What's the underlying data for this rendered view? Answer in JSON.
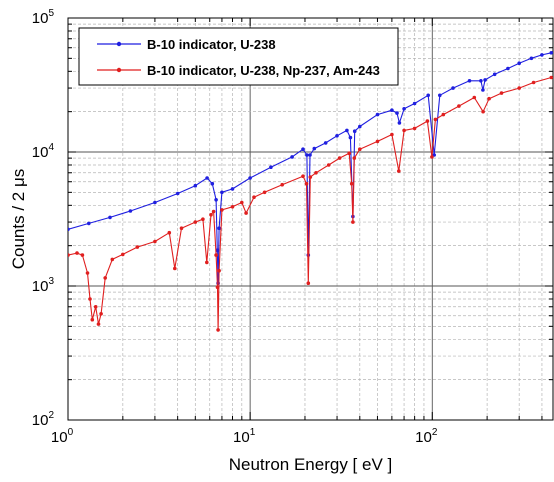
{
  "chart_data": {
    "type": "line",
    "xscale": "log",
    "yscale": "log",
    "xlim": [
      1,
      460
    ],
    "ylim": [
      100,
      100000
    ],
    "grid": true,
    "legend_position": "top-left",
    "xlabel": "Neutron Energy [ eV ]",
    "ylabel": "Counts / 2 μs",
    "x_ticks": [
      {
        "value": 1,
        "base": "10",
        "exp": "0"
      },
      {
        "value": 10,
        "base": "10",
        "exp": "1"
      },
      {
        "value": 100,
        "base": "10",
        "exp": "2"
      }
    ],
    "y_ticks": [
      {
        "value": 100,
        "base": "10",
        "exp": "2"
      },
      {
        "value": 1000,
        "base": "10",
        "exp": "3"
      },
      {
        "value": 10000,
        "base": "10",
        "exp": "4"
      },
      {
        "value": 100000,
        "base": "10",
        "exp": "5"
      }
    ],
    "series": [
      {
        "name": "B-10 indicator, U-238",
        "color": "#1f1fe0",
        "x": [
          1.0,
          1.3,
          1.7,
          2.2,
          3.0,
          4.0,
          5.0,
          5.8,
          6.2,
          6.5,
          6.6,
          6.67,
          6.75,
          7.0,
          8.0,
          10,
          13,
          17,
          19.5,
          20.5,
          20.87,
          21.3,
          22.5,
          26,
          30,
          34,
          35.5,
          36.68,
          37.5,
          40,
          50,
          60,
          64,
          66,
          70,
          80,
          95,
          102.5,
          110,
          130,
          160,
          185,
          189.7,
          195,
          220,
          260,
          300,
          350,
          400,
          450
        ],
        "y": [
          2650,
          2930,
          3250,
          3630,
          4200,
          4900,
          5600,
          6400,
          5800,
          4400,
          1850,
          1050,
          2700,
          5000,
          5300,
          6400,
          7700,
          9200,
          10500,
          9500,
          1700,
          9500,
          10600,
          11700,
          13200,
          14500,
          12800,
          3300,
          14300,
          15500,
          19000,
          20500,
          19500,
          16500,
          21000,
          23000,
          26500,
          9500,
          26500,
          30000,
          34000,
          34000,
          29000,
          34500,
          38000,
          42000,
          46000,
          50000,
          53000,
          55000
        ]
      },
      {
        "name": "B-10 indicator, U-238, Np-237, Am-243",
        "color": "#e01f1f",
        "x": [
          1.0,
          1.12,
          1.2,
          1.28,
          1.32,
          1.36,
          1.42,
          1.47,
          1.52,
          1.6,
          1.75,
          2.0,
          2.4,
          3.0,
          3.6,
          3.86,
          4.2,
          5.0,
          5.5,
          5.78,
          6.1,
          6.3,
          6.5,
          6.62,
          6.67,
          6.75,
          7.0,
          8.0,
          9.0,
          9.5,
          10.5,
          12,
          15,
          19.5,
          20.4,
          20.87,
          21.4,
          23,
          27,
          31,
          35,
          36.1,
          36.68,
          37.3,
          40,
          50,
          60,
          65.5,
          70,
          80,
          94,
          99.5,
          104,
          115,
          140,
          170,
          190,
          205,
          240,
          300,
          360,
          450
        ],
        "y": [
          1700,
          1760,
          1700,
          1250,
          800,
          560,
          700,
          520,
          620,
          1150,
          1580,
          1720,
          1950,
          2150,
          2500,
          1350,
          2700,
          3000,
          3150,
          1500,
          3400,
          3600,
          1700,
          980,
          470,
          1300,
          3700,
          3900,
          4200,
          3500,
          4600,
          5000,
          5700,
          6600,
          5800,
          1050,
          6500,
          7000,
          8000,
          9000,
          9800,
          5800,
          3000,
          9000,
          10500,
          12000,
          13500,
          7200,
          14500,
          15000,
          17000,
          9200,
          17500,
          19000,
          22000,
          25500,
          20000,
          25000,
          27500,
          30000,
          33000,
          36000
        ]
      }
    ]
  }
}
